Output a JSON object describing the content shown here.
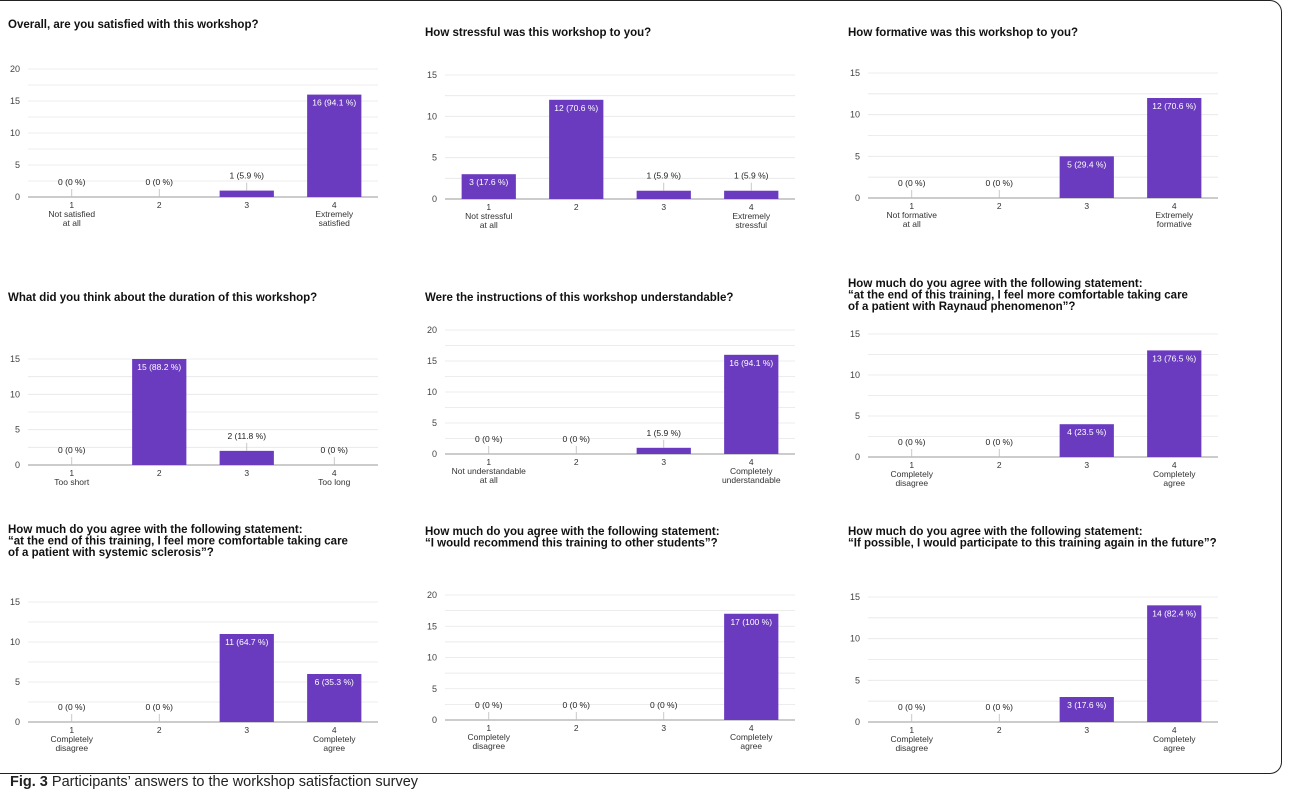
{
  "caption": {
    "label": "Fig. 3",
    "text": "Participants’ answers to the workshop satisfaction survey"
  },
  "colors": {
    "bar": "#6a3bbf",
    "grid": "#e6e6e6",
    "axis": "#999999"
  },
  "chart_data": [
    {
      "type": "bar",
      "title": [
        "Overall, are you satisfied with this workshop?"
      ],
      "categories": [
        [
          "1",
          "Not satisfied",
          "at all"
        ],
        [
          "2"
        ],
        [
          "3"
        ],
        [
          "4",
          "Extremely",
          "satisfied"
        ]
      ],
      "values": [
        0,
        0,
        1,
        16
      ],
      "labels": [
        "0 (0 %)",
        "0 (0 %)",
        "1 (5.9 %)",
        "16 (94.1 %)"
      ],
      "ylim": [
        0,
        20
      ],
      "yticks": [
        0,
        5,
        10,
        15,
        20
      ]
    },
    {
      "type": "bar",
      "title": [
        "How stressful was this workshop to you?"
      ],
      "categories": [
        [
          "1",
          "Not stressful",
          "at all"
        ],
        [
          "2"
        ],
        [
          "3"
        ],
        [
          "4",
          "Extremely",
          "stressful"
        ]
      ],
      "values": [
        3,
        12,
        1,
        1
      ],
      "labels": [
        "3 (17.6 %)",
        "12 (70.6 %)",
        "1 (5.9 %)",
        "1 (5.9 %)"
      ],
      "ylim": [
        0,
        15
      ],
      "yticks": [
        0,
        5,
        10,
        15
      ]
    },
    {
      "type": "bar",
      "title": [
        "How formative was this workshop to you?"
      ],
      "categories": [
        [
          "1",
          "Not formative",
          "at all"
        ],
        [
          "2"
        ],
        [
          "3"
        ],
        [
          "4",
          "Extremely",
          "formative"
        ]
      ],
      "values": [
        0,
        0,
        5,
        12
      ],
      "labels": [
        "0 (0 %)",
        "0 (0 %)",
        "5 (29.4 %)",
        "12 (70.6 %)"
      ],
      "ylim": [
        0,
        15
      ],
      "yticks": [
        0,
        5,
        10,
        15
      ]
    },
    {
      "type": "bar",
      "title": [
        "What did you think about the duration of this workshop?"
      ],
      "categories": [
        [
          "1",
          "Too short"
        ],
        [
          "2"
        ],
        [
          "3"
        ],
        [
          "4",
          "Too long"
        ]
      ],
      "values": [
        0,
        15,
        2,
        0
      ],
      "labels": [
        "0 (0 %)",
        "15 (88.2 %)",
        "2 (11.8 %)",
        "0 (0 %)"
      ],
      "ylim": [
        0,
        15
      ],
      "yticks": [
        0,
        5,
        10,
        15
      ]
    },
    {
      "type": "bar",
      "title": [
        "Were the instructions of this workshop understandable?"
      ],
      "categories": [
        [
          "1",
          "Not understandable",
          "at all"
        ],
        [
          "2"
        ],
        [
          "3"
        ],
        [
          "4",
          "Completely",
          "understandable"
        ]
      ],
      "values": [
        0,
        0,
        1,
        16
      ],
      "labels": [
        "0 (0 %)",
        "0 (0 %)",
        "1 (5.9 %)",
        "16 (94.1 %)"
      ],
      "ylim": [
        0,
        20
      ],
      "yticks": [
        0,
        5,
        10,
        15,
        20
      ]
    },
    {
      "type": "bar",
      "title": [
        "How much do you agree with the following statement:",
        "“at the end of this training, I feel more comfortable taking care",
        "of a patient with Raynaud phenomenon”?"
      ],
      "categories": [
        [
          "1",
          "Completely",
          "disagree"
        ],
        [
          "2"
        ],
        [
          "3"
        ],
        [
          "4",
          "Completely",
          "agree"
        ]
      ],
      "values": [
        0,
        0,
        4,
        13
      ],
      "labels": [
        "0 (0 %)",
        "0 (0 %)",
        "4 (23.5 %)",
        "13 (76.5 %)"
      ],
      "ylim": [
        0,
        15
      ],
      "yticks": [
        0,
        5,
        10,
        15
      ]
    },
    {
      "type": "bar",
      "title": [
        "How much do you agree with the following statement:",
        "“at the end of this training, I feel more comfortable taking care",
        "of a patient with systemic sclerosis”?"
      ],
      "categories": [
        [
          "1",
          "Completely",
          "disagree"
        ],
        [
          "2"
        ],
        [
          "3"
        ],
        [
          "4",
          "Completely",
          "agree"
        ]
      ],
      "values": [
        0,
        0,
        11,
        6
      ],
      "labels": [
        "0 (0 %)",
        "0 (0 %)",
        "11 (64.7 %)",
        "6 (35.3 %)"
      ],
      "ylim": [
        0,
        15
      ],
      "yticks": [
        0,
        5,
        10,
        15
      ]
    },
    {
      "type": "bar",
      "title": [
        "How much do you agree with the following statement:",
        "“I would recommend this training to other students”?"
      ],
      "categories": [
        [
          "1",
          "Completely",
          "disagree"
        ],
        [
          "2"
        ],
        [
          "3"
        ],
        [
          "4",
          "Completely",
          "agree"
        ]
      ],
      "values": [
        0,
        0,
        0,
        17
      ],
      "labels": [
        "0 (0 %)",
        "0 (0 %)",
        "0 (0 %)",
        "17 (100 %)"
      ],
      "ylim": [
        0,
        20
      ],
      "yticks": [
        0,
        5,
        10,
        15,
        20
      ]
    },
    {
      "type": "bar",
      "title": [
        "How much do you agree with the following statement:",
        "“If possible, I would participate to this training again in the future”?"
      ],
      "categories": [
        [
          "1",
          "Completely",
          "disagree"
        ],
        [
          "2"
        ],
        [
          "3"
        ],
        [
          "4",
          "Completely",
          "agree"
        ]
      ],
      "values": [
        0,
        0,
        3,
        14
      ],
      "labels": [
        "0 (0 %)",
        "0 (0 %)",
        "3 (17.6 %)",
        "14 (82.4 %)"
      ],
      "ylim": [
        0,
        15
      ],
      "yticks": [
        0,
        5,
        10,
        15
      ]
    }
  ]
}
